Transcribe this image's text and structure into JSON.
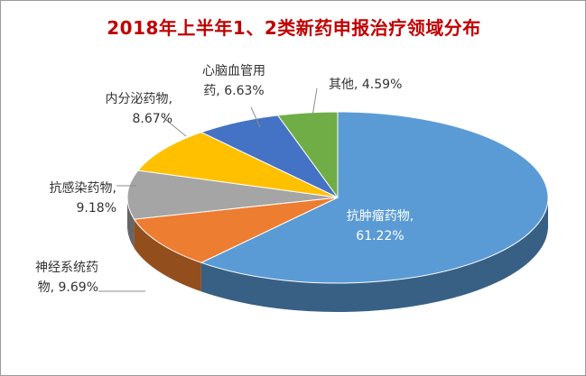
{
  "chart_data": {
    "type": "pie",
    "title": "2018年上半年1、2类新药申报治疗领域分布",
    "slices": [
      {
        "name": "抗肿瘤药物",
        "value": 61.22,
        "color": "#5b9bd5",
        "label_lines": [
          "抗肿瘤药物,",
          "61.22%"
        ]
      },
      {
        "name": "神经系统药物",
        "value": 9.69,
        "color": "#ed7d31",
        "label_lines": [
          "神经系统药",
          "物, 9.69%"
        ]
      },
      {
        "name": "抗感染药物",
        "value": 9.18,
        "color": "#a5a5a5",
        "label_lines": [
          "抗感染药物,",
          "9.18%"
        ]
      },
      {
        "name": "内分泌药物",
        "value": 8.67,
        "color": "#ffc000",
        "label_lines": [
          "内分泌药物,",
          "8.67%"
        ]
      },
      {
        "name": "心脑血管用药",
        "value": 6.63,
        "color": "#4472c4",
        "label_lines": [
          "心脑血管用",
          "药, 6.63%"
        ]
      },
      {
        "name": "其他",
        "value": 4.59,
        "color": "#70ad47",
        "label_lines": [
          "其他, 4.59%"
        ]
      }
    ],
    "legend": "none",
    "style": "3d"
  }
}
